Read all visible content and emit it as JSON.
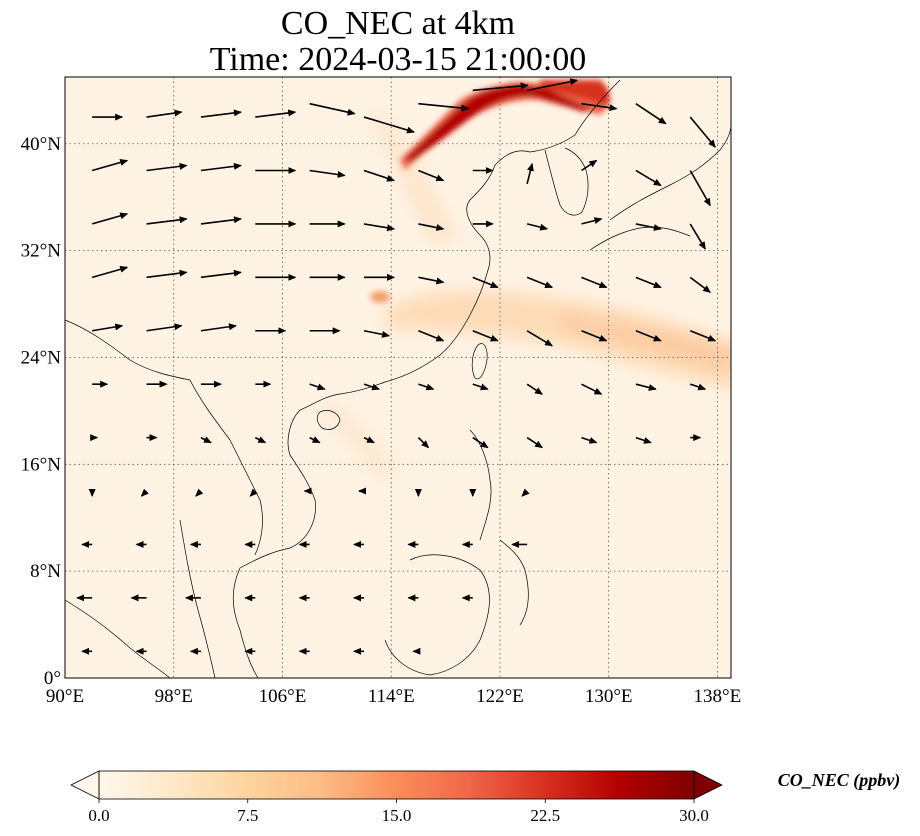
{
  "title": {
    "line1": "CO_NEC at 4km",
    "line2": "Time: 2024-03-15 21:00:00"
  },
  "map": {
    "projection": "PlateCarree",
    "lon_range": [
      90,
      139
    ],
    "lat_range": [
      0,
      45
    ],
    "lon_ticks": [
      {
        "value": 90,
        "label": "90°E"
      },
      {
        "value": 98,
        "label": "98°E"
      },
      {
        "value": 106,
        "label": "106°E"
      },
      {
        "value": 114,
        "label": "114°E"
      },
      {
        "value": 122,
        "label": "122°E"
      },
      {
        "value": 130,
        "label": "130°E"
      },
      {
        "value": 138,
        "label": "138°E"
      }
    ],
    "lat_ticks": [
      {
        "value": 0,
        "label": "0°"
      },
      {
        "value": 8,
        "label": "8°N"
      },
      {
        "value": 16,
        "label": "16°N"
      },
      {
        "value": 24,
        "label": "24°N"
      },
      {
        "value": 32,
        "label": "32°N"
      },
      {
        "value": 40,
        "label": "40°N"
      }
    ],
    "gridlines": true,
    "gridline_style": "dotted",
    "coastlines": true,
    "wind_vectors": true
  },
  "colorbar": {
    "label": "CO_NEC (ppbv)",
    "colormap": "OrRd",
    "min": 0.0,
    "max": 30.0,
    "extend": "both",
    "ticks": [
      "0.0",
      "7.5",
      "15.0",
      "22.5",
      "30.0"
    ],
    "colors": [
      "#fff7ec",
      "#fee8c8",
      "#fdd49e",
      "#fdbb84",
      "#fc8d59",
      "#ef6548",
      "#d7301f",
      "#b30000",
      "#7f0000"
    ]
  },
  "field_features": [
    {
      "feature": "high plume",
      "lon": 119.5,
      "lat": 42.0,
      "level": 22
    },
    {
      "feature": "high plume",
      "lon": 123.5,
      "lat": 44.3,
      "level": 26
    },
    {
      "feature": "high plume",
      "lon": 127.5,
      "lat": 44.2,
      "level": 28
    },
    {
      "feature": "moderate patch",
      "lon": 114.5,
      "lat": 28.6,
      "level": 12
    },
    {
      "feature": "moderate band",
      "lon": 122,
      "lat": 28.5,
      "level": 8
    },
    {
      "feature": "moderate band",
      "lon": 133,
      "lat": 26,
      "level": 9
    },
    {
      "feature": "moderate band",
      "lon": 136,
      "lat": 25,
      "level": 8
    }
  ],
  "winds": [
    {
      "lon": 92,
      "lat": 42,
      "u": 6,
      "v": 0
    },
    {
      "lon": 96,
      "lat": 42,
      "u": 7,
      "v": 1
    },
    {
      "lon": 100,
      "lat": 42,
      "u": 8,
      "v": 1
    },
    {
      "lon": 104,
      "lat": 42,
      "u": 8,
      "v": 1
    },
    {
      "lon": 108,
      "lat": 43,
      "u": 9,
      "v": -2
    },
    {
      "lon": 112,
      "lat": 42,
      "u": 10,
      "v": -3
    },
    {
      "lon": 116,
      "lat": 43,
      "u": 10,
      "v": -1
    },
    {
      "lon": 120,
      "lat": 44,
      "u": 11,
      "v": 1
    },
    {
      "lon": 124,
      "lat": 44,
      "u": 10,
      "v": 2
    },
    {
      "lon": 128,
      "lat": 43,
      "u": 7,
      "v": -1
    },
    {
      "lon": 132,
      "lat": 43,
      "u": 6,
      "v": -4
    },
    {
      "lon": 136,
      "lat": 42,
      "u": 5,
      "v": -6
    },
    {
      "lon": 92,
      "lat": 38,
      "u": 7,
      "v": 2
    },
    {
      "lon": 96,
      "lat": 38,
      "u": 8,
      "v": 1
    },
    {
      "lon": 100,
      "lat": 38,
      "u": 8,
      "v": 1
    },
    {
      "lon": 104,
      "lat": 38,
      "u": 8,
      "v": 0
    },
    {
      "lon": 108,
      "lat": 38,
      "u": 7,
      "v": -1
    },
    {
      "lon": 112,
      "lat": 38,
      "u": 6,
      "v": -2
    },
    {
      "lon": 116,
      "lat": 38,
      "u": 5,
      "v": -2
    },
    {
      "lon": 120,
      "lat": 38,
      "u": 4,
      "v": 0
    },
    {
      "lon": 124,
      "lat": 37,
      "u": 1,
      "v": 4
    },
    {
      "lon": 128,
      "lat": 38,
      "u": 3,
      "v": 2
    },
    {
      "lon": 132,
      "lat": 38,
      "u": 5,
      "v": -3
    },
    {
      "lon": 136,
      "lat": 38,
      "u": 4,
      "v": -7
    },
    {
      "lon": 92,
      "lat": 34,
      "u": 7,
      "v": 2
    },
    {
      "lon": 96,
      "lat": 34,
      "u": 8,
      "v": 1
    },
    {
      "lon": 100,
      "lat": 34,
      "u": 8,
      "v": 1
    },
    {
      "lon": 104,
      "lat": 34,
      "u": 8,
      "v": 0
    },
    {
      "lon": 108,
      "lat": 34,
      "u": 7,
      "v": 0
    },
    {
      "lon": 112,
      "lat": 34,
      "u": 6,
      "v": -1
    },
    {
      "lon": 116,
      "lat": 34,
      "u": 5,
      "v": -1
    },
    {
      "lon": 120,
      "lat": 34,
      "u": 4,
      "v": 0
    },
    {
      "lon": 124,
      "lat": 34,
      "u": 4,
      "v": -1
    },
    {
      "lon": 128,
      "lat": 34,
      "u": 4,
      "v": 1
    },
    {
      "lon": 132,
      "lat": 34,
      "u": 5,
      "v": -1
    },
    {
      "lon": 136,
      "lat": 34,
      "u": 3,
      "v": -5
    },
    {
      "lon": 92,
      "lat": 30,
      "u": 7,
      "v": 2
    },
    {
      "lon": 96,
      "lat": 30,
      "u": 8,
      "v": 1
    },
    {
      "lon": 100,
      "lat": 30,
      "u": 8,
      "v": 1
    },
    {
      "lon": 104,
      "lat": 30,
      "u": 8,
      "v": 0
    },
    {
      "lon": 108,
      "lat": 30,
      "u": 7,
      "v": 0
    },
    {
      "lon": 112,
      "lat": 30,
      "u": 6,
      "v": 0
    },
    {
      "lon": 116,
      "lat": 30,
      "u": 5,
      "v": -1
    },
    {
      "lon": 120,
      "lat": 30,
      "u": 5,
      "v": -2
    },
    {
      "lon": 124,
      "lat": 30,
      "u": 5,
      "v": -2
    },
    {
      "lon": 128,
      "lat": 30,
      "u": 5,
      "v": -2
    },
    {
      "lon": 132,
      "lat": 30,
      "u": 5,
      "v": -2
    },
    {
      "lon": 136,
      "lat": 30,
      "u": 4,
      "v": -3
    },
    {
      "lon": 92,
      "lat": 26,
      "u": 6,
      "v": 1
    },
    {
      "lon": 96,
      "lat": 26,
      "u": 7,
      "v": 1
    },
    {
      "lon": 100,
      "lat": 26,
      "u": 7,
      "v": 1
    },
    {
      "lon": 104,
      "lat": 26,
      "u": 6,
      "v": 0
    },
    {
      "lon": 108,
      "lat": 26,
      "u": 6,
      "v": 0
    },
    {
      "lon": 112,
      "lat": 26,
      "u": 5,
      "v": -1
    },
    {
      "lon": 116,
      "lat": 26,
      "u": 5,
      "v": -2
    },
    {
      "lon": 120,
      "lat": 26,
      "u": 5,
      "v": -2
    },
    {
      "lon": 124,
      "lat": 26,
      "u": 5,
      "v": -3
    },
    {
      "lon": 128,
      "lat": 26,
      "u": 5,
      "v": -2
    },
    {
      "lon": 132,
      "lat": 26,
      "u": 5,
      "v": -2
    },
    {
      "lon": 136,
      "lat": 26,
      "u": 5,
      "v": -2
    },
    {
      "lon": 92,
      "lat": 22,
      "u": 3,
      "v": 0
    },
    {
      "lon": 96,
      "lat": 22,
      "u": 4,
      "v": 0
    },
    {
      "lon": 100,
      "lat": 22,
      "u": 4,
      "v": 0
    },
    {
      "lon": 104,
      "lat": 22,
      "u": 3,
      "v": 0
    },
    {
      "lon": 108,
      "lat": 22,
      "u": 3,
      "v": -1
    },
    {
      "lon": 112,
      "lat": 22,
      "u": 3,
      "v": -1
    },
    {
      "lon": 116,
      "lat": 22,
      "u": 3,
      "v": -1
    },
    {
      "lon": 120,
      "lat": 22,
      "u": 3,
      "v": -1
    },
    {
      "lon": 124,
      "lat": 22,
      "u": 3,
      "v": -2
    },
    {
      "lon": 128,
      "lat": 22,
      "u": 4,
      "v": -2
    },
    {
      "lon": 132,
      "lat": 22,
      "u": 4,
      "v": -1
    },
    {
      "lon": 136,
      "lat": 22,
      "u": 3,
      "v": -1
    },
    {
      "lon": 92,
      "lat": 18,
      "u": 1,
      "v": 0
    },
    {
      "lon": 96,
      "lat": 18,
      "u": 2,
      "v": 0
    },
    {
      "lon": 100,
      "lat": 18,
      "u": 2,
      "v": -1
    },
    {
      "lon": 104,
      "lat": 18,
      "u": 2,
      "v": -1
    },
    {
      "lon": 108,
      "lat": 18,
      "u": 2,
      "v": -1
    },
    {
      "lon": 112,
      "lat": 18,
      "u": 2,
      "v": -1
    },
    {
      "lon": 116,
      "lat": 18,
      "u": 2,
      "v": -2
    },
    {
      "lon": 120,
      "lat": 18,
      "u": 3,
      "v": -2
    },
    {
      "lon": 124,
      "lat": 18,
      "u": 3,
      "v": -2
    },
    {
      "lon": 128,
      "lat": 18,
      "u": 3,
      "v": -1
    },
    {
      "lon": 132,
      "lat": 18,
      "u": 3,
      "v": -1
    },
    {
      "lon": 136,
      "lat": 18,
      "u": 2,
      "v": 0
    },
    {
      "lon": 92,
      "lat": 14,
      "u": 0,
      "v": -1
    },
    {
      "lon": 96,
      "lat": 14,
      "u": -1,
      "v": -1
    },
    {
      "lon": 100,
      "lat": 14,
      "u": -1,
      "v": -1
    },
    {
      "lon": 104,
      "lat": 14,
      "u": -1,
      "v": -1
    },
    {
      "lon": 108,
      "lat": 14,
      "u": -1,
      "v": 0
    },
    {
      "lon": 112,
      "lat": 14,
      "u": -1,
      "v": 0
    },
    {
      "lon": 116,
      "lat": 14,
      "u": 0,
      "v": -1
    },
    {
      "lon": 120,
      "lat": 14,
      "u": 0,
      "v": -1
    },
    {
      "lon": 124,
      "lat": 14,
      "u": -1,
      "v": -1
    },
    {
      "lon": 92,
      "lat": 10,
      "u": -2,
      "v": 0
    },
    {
      "lon": 96,
      "lat": 10,
      "u": -2,
      "v": 0
    },
    {
      "lon": 100,
      "lat": 10,
      "u": -2,
      "v": 0
    },
    {
      "lon": 104,
      "lat": 10,
      "u": -2,
      "v": 0
    },
    {
      "lon": 108,
      "lat": 10,
      "u": -2,
      "v": 0
    },
    {
      "lon": 112,
      "lat": 10,
      "u": -2,
      "v": 0
    },
    {
      "lon": 116,
      "lat": 10,
      "u": -2,
      "v": 0
    },
    {
      "lon": 120,
      "lat": 10,
      "u": -2,
      "v": 0
    },
    {
      "lon": 124,
      "lat": 10,
      "u": -3,
      "v": 0
    },
    {
      "lon": 92,
      "lat": 6,
      "u": -3,
      "v": 0
    },
    {
      "lon": 96,
      "lat": 6,
      "u": -3,
      "v": 0
    },
    {
      "lon": 100,
      "lat": 6,
      "u": -3,
      "v": 0
    },
    {
      "lon": 104,
      "lat": 6,
      "u": -2,
      "v": 0
    },
    {
      "lon": 108,
      "lat": 6,
      "u": -2,
      "v": 0
    },
    {
      "lon": 112,
      "lat": 6,
      "u": -2,
      "v": 0
    },
    {
      "lon": 116,
      "lat": 6,
      "u": -2,
      "v": 0
    },
    {
      "lon": 120,
      "lat": 6,
      "u": -2,
      "v": 0
    },
    {
      "lon": 92,
      "lat": 2,
      "u": -2,
      "v": 0
    },
    {
      "lon": 96,
      "lat": 2,
      "u": -2,
      "v": 0
    },
    {
      "lon": 100,
      "lat": 2,
      "u": -2,
      "v": 0
    },
    {
      "lon": 104,
      "lat": 2,
      "u": -2,
      "v": 0
    },
    {
      "lon": 108,
      "lat": 2,
      "u": -2,
      "v": 0
    },
    {
      "lon": 112,
      "lat": 2,
      "u": -2,
      "v": 0
    },
    {
      "lon": 116,
      "lat": 2,
      "u": -1,
      "v": 0
    }
  ]
}
